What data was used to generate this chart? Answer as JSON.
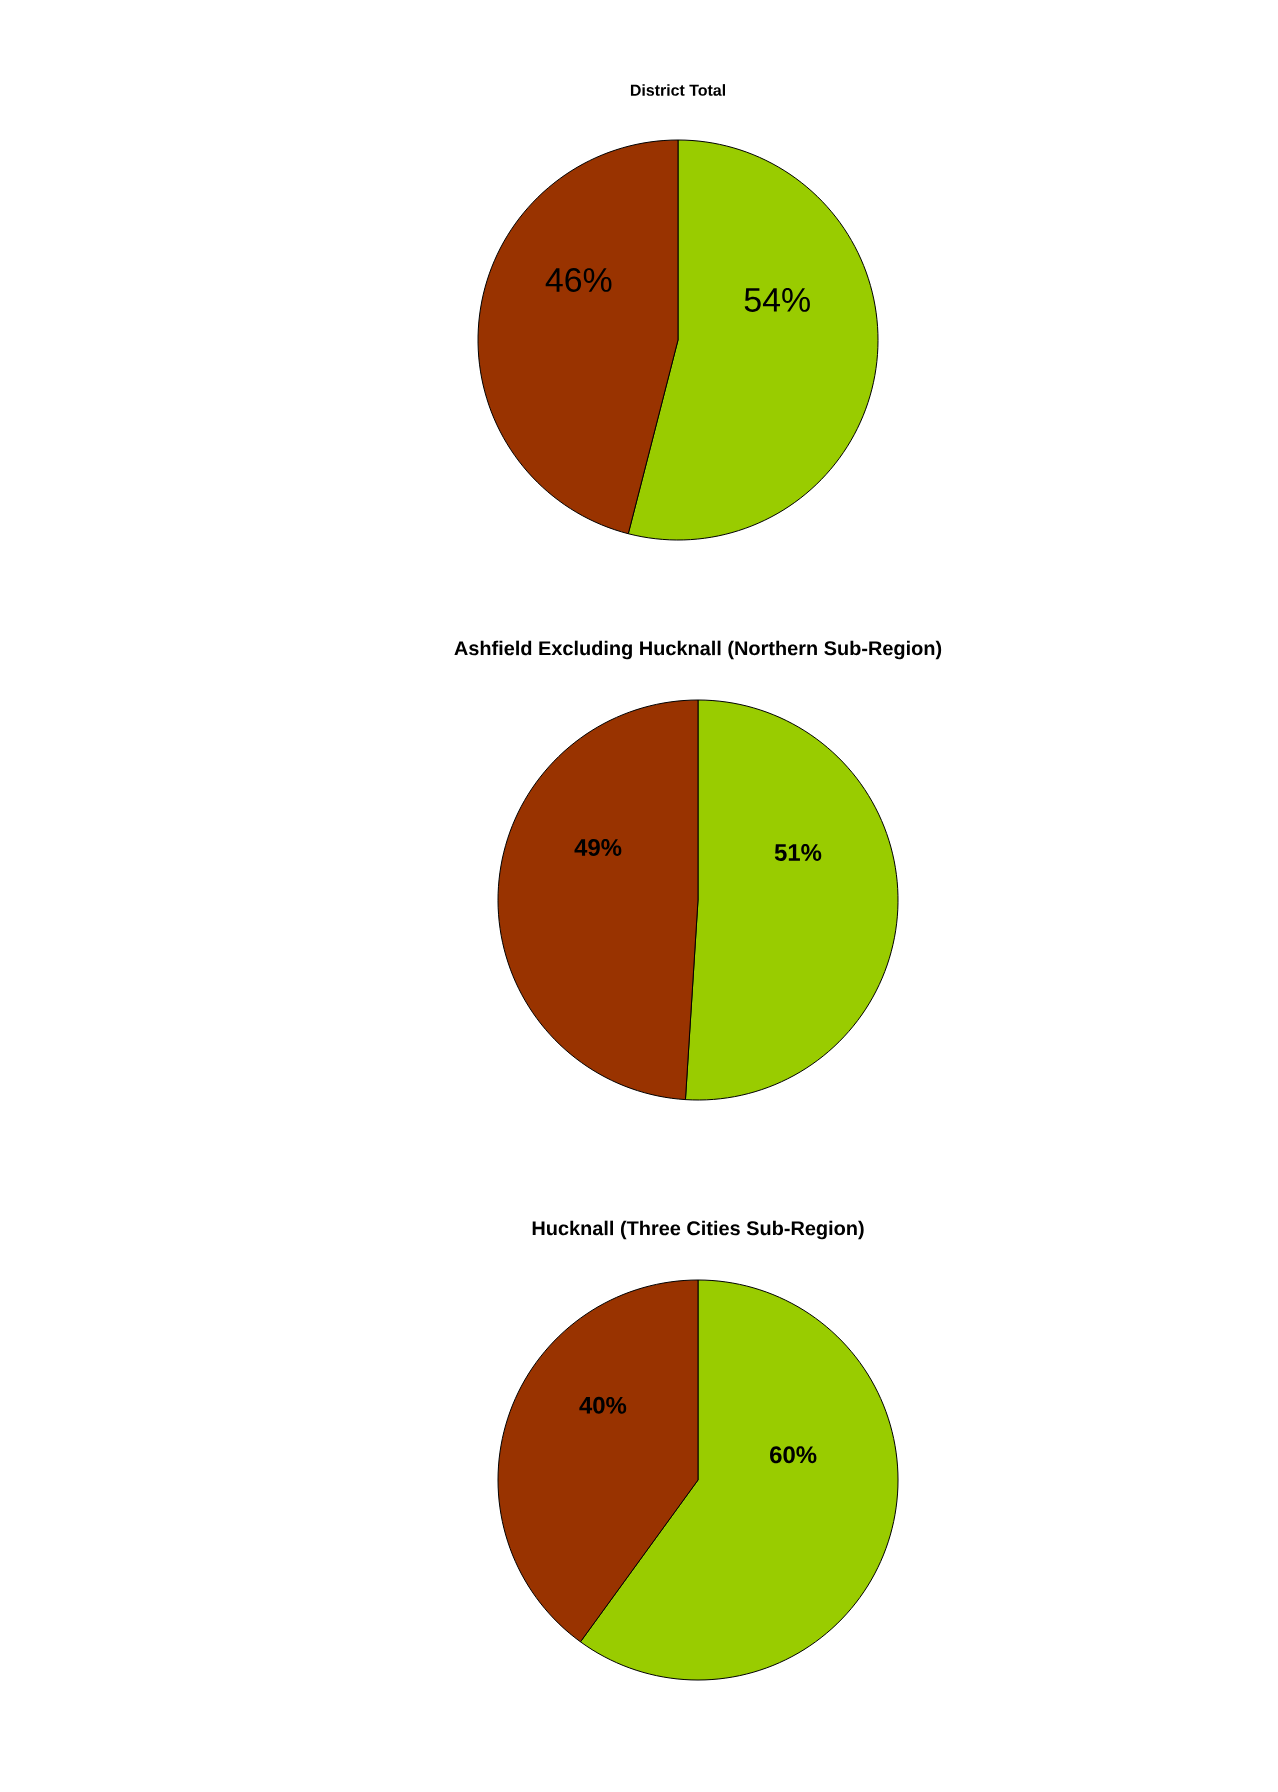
{
  "chart_data": [
    {
      "type": "pie",
      "title": "District Total",
      "categories": [
        null,
        null
      ],
      "values": [
        54,
        46
      ],
      "colors": [
        "#99cc00",
        "#993300"
      ],
      "value_labels": [
        "54%",
        "46%"
      ]
    },
    {
      "type": "pie",
      "title": "Ashfield Excluding Hucknall (Northern Sub-Region)",
      "categories": [
        null,
        null
      ],
      "values": [
        51,
        49
      ],
      "colors": [
        "#99cc00",
        "#993300"
      ],
      "value_labels": [
        "51%",
        "49%"
      ]
    },
    {
      "type": "pie",
      "title": "Hucknall (Three Cities Sub-Region)",
      "categories": [
        null,
        null
      ],
      "values": [
        60,
        40
      ],
      "colors": [
        "#99cc00",
        "#993300"
      ],
      "value_labels": [
        "60%",
        "40%"
      ]
    }
  ]
}
